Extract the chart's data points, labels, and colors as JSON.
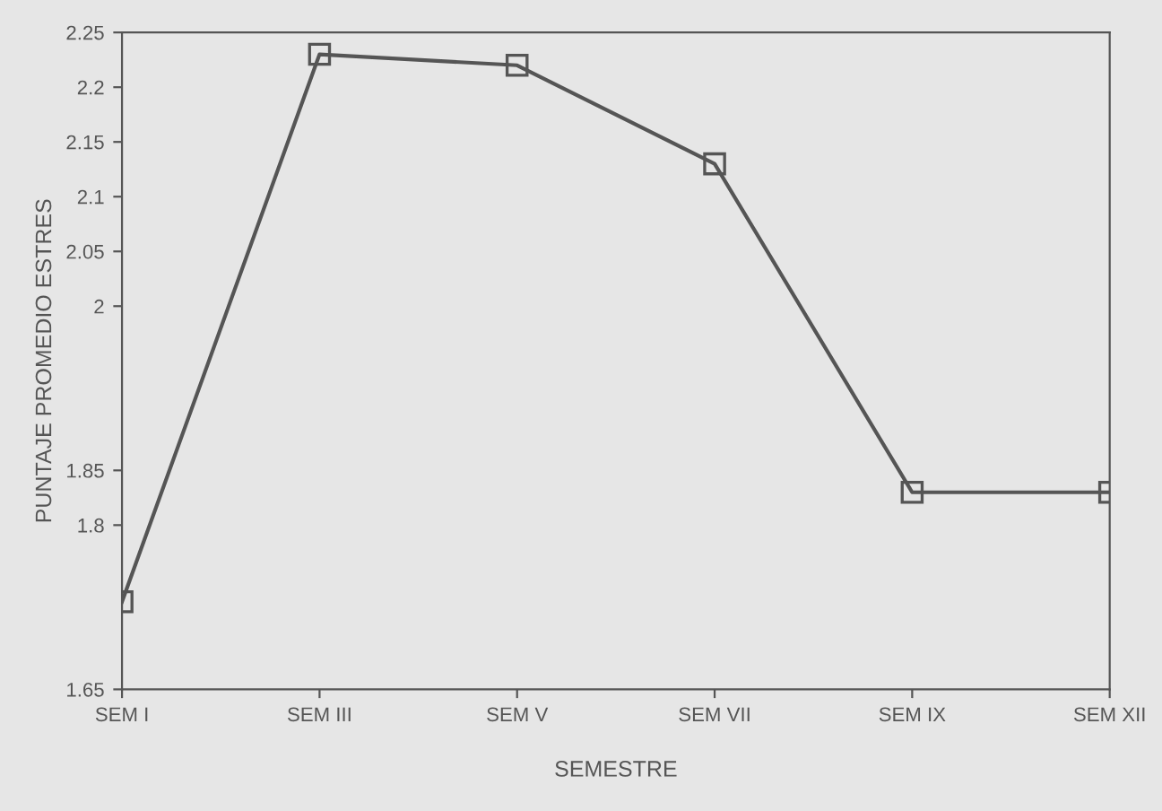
{
  "chart_data": {
    "type": "line",
    "xlabel": "SEMESTRE",
    "ylabel": "PUNTAJE PROMEDIO ESTRES",
    "categories": [
      "SEM I",
      "SEM III",
      "SEM V",
      "SEM VII",
      "SEM IX",
      "SEM XII"
    ],
    "series": [
      {
        "color": "#555555",
        "values": [
          1.73,
          2.23,
          2.22,
          2.13,
          1.83,
          1.83
        ]
      }
    ],
    "ylim": [
      1.65,
      2.25
    ],
    "yticks": [
      1.65,
      1.8,
      1.85,
      2,
      2.05,
      2.1,
      2.15,
      2.2,
      2.25
    ],
    "marker": "square",
    "line_style": "solid",
    "grid": false,
    "legend": false
  }
}
